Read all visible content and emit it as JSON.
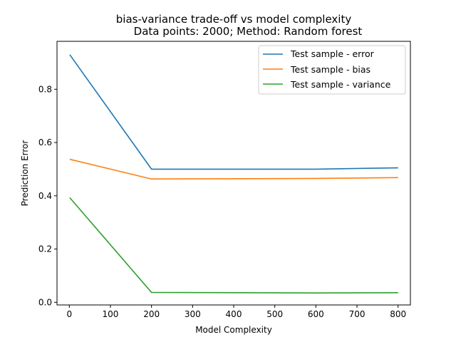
{
  "chart_data": {
    "type": "line",
    "title_line1": "bias-variance trade-off vs model complexity",
    "title_line2": "Data points: 2000; Method: Random forest",
    "xlabel": "Model Complexity",
    "ylabel": "Prediction Error",
    "xlim": [
      -30,
      830
    ],
    "ylim": [
      -0.01,
      0.98
    ],
    "xticks": [
      0,
      100,
      200,
      300,
      400,
      500,
      600,
      700,
      800
    ],
    "yticks": [
      0.0,
      0.2,
      0.4,
      0.6,
      0.8
    ],
    "ytick_labels": [
      "0.0",
      "0.2",
      "0.4",
      "0.6",
      "0.8"
    ],
    "x": [
      1,
      200,
      600,
      800
    ],
    "series": [
      {
        "name": "Test sample - error",
        "color": "#1f77b4",
        "values": [
          0.93,
          0.5,
          0.5,
          0.505
        ]
      },
      {
        "name": "Test sample - bias",
        "color": "#ff7f0e",
        "values": [
          0.537,
          0.463,
          0.465,
          0.468
        ]
      },
      {
        "name": "Test sample - variance",
        "color": "#2ca02c",
        "values": [
          0.393,
          0.037,
          0.035,
          0.036
        ]
      }
    ],
    "legend_position": "upper right",
    "grid": false
  }
}
